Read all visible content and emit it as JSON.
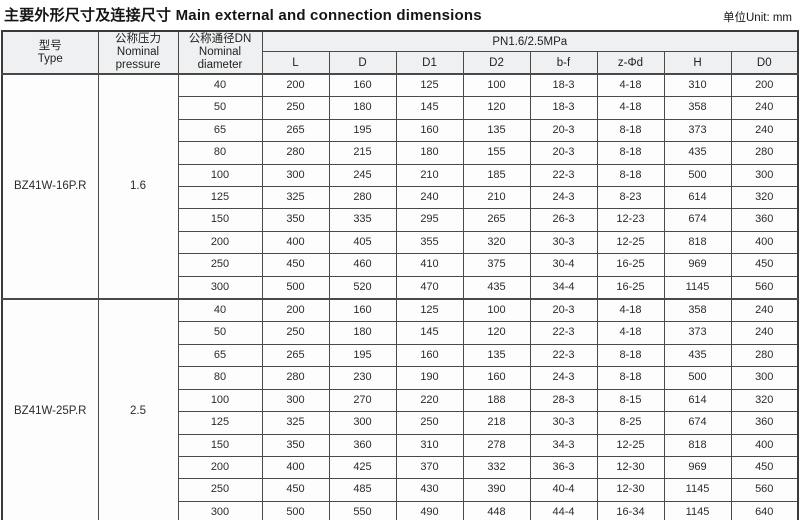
{
  "title": {
    "zh": "主要外形尺寸及连接尺寸",
    "en": "Main external and connection dimensions",
    "unit": "单位Unit: mm"
  },
  "colors": {
    "header_bg": "#eef0f1",
    "cell_bg": "#fdfdfd",
    "border": "#4a4a4a",
    "outer_border": "#3a3a3a",
    "text": "#1f1f1f"
  },
  "table": {
    "headers": {
      "type": [
        "型号",
        "Type"
      ],
      "pressure": [
        "公称压力",
        "Nominal",
        "pressure"
      ],
      "diameter": [
        "公称通径DN",
        "Nominal",
        "diameter"
      ],
      "pn": "PN1.6/2.5MPa",
      "dims": [
        "L",
        "D",
        "D1",
        "D2",
        "b-f",
        "z-Φd",
        "H",
        "D0"
      ]
    },
    "groups": [
      {
        "type": "BZ41W-16P.R",
        "pressure": "1.6",
        "rows": [
          {
            "dn": "40",
            "values": [
              "200",
              "160",
              "125",
              "100",
              "18-3",
              "4-18",
              "310",
              "200"
            ]
          },
          {
            "dn": "50",
            "values": [
              "250",
              "180",
              "145",
              "120",
              "18-3",
              "4-18",
              "358",
              "240"
            ]
          },
          {
            "dn": "65",
            "values": [
              "265",
              "195",
              "160",
              "135",
              "20-3",
              "8-18",
              "373",
              "240"
            ]
          },
          {
            "dn": "80",
            "values": [
              "280",
              "215",
              "180",
              "155",
              "20-3",
              "8-18",
              "435",
              "280"
            ]
          },
          {
            "dn": "100",
            "values": [
              "300",
              "245",
              "210",
              "185",
              "22-3",
              "8-18",
              "500",
              "300"
            ]
          },
          {
            "dn": "125",
            "values": [
              "325",
              "280",
              "240",
              "210",
              "24-3",
              "8-23",
              "614",
              "320"
            ]
          },
          {
            "dn": "150",
            "values": [
              "350",
              "335",
              "295",
              "265",
              "26-3",
              "12-23",
              "674",
              "360"
            ]
          },
          {
            "dn": "200",
            "values": [
              "400",
              "405",
              "355",
              "320",
              "30-3",
              "12-25",
              "818",
              "400"
            ]
          },
          {
            "dn": "250",
            "values": [
              "450",
              "460",
              "410",
              "375",
              "30-4",
              "16-25",
              "969",
              "450"
            ]
          },
          {
            "dn": "300",
            "values": [
              "500",
              "520",
              "470",
              "435",
              "34-4",
              "16-25",
              "1145",
              "560"
            ]
          }
        ]
      },
      {
        "type": "BZ41W-25P.R",
        "pressure": "2.5",
        "rows": [
          {
            "dn": "40",
            "values": [
              "200",
              "160",
              "125",
              "100",
              "20-3",
              "4-18",
              "358",
              "240"
            ]
          },
          {
            "dn": "50",
            "values": [
              "250",
              "180",
              "145",
              "120",
              "22-3",
              "4-18",
              "373",
              "240"
            ]
          },
          {
            "dn": "65",
            "values": [
              "265",
              "195",
              "160",
              "135",
              "22-3",
              "8-18",
              "435",
              "280"
            ]
          },
          {
            "dn": "80",
            "values": [
              "280",
              "230",
              "190",
              "160",
              "24-3",
              "8-18",
              "500",
              "300"
            ]
          },
          {
            "dn": "100",
            "values": [
              "300",
              "270",
              "220",
              "188",
              "28-3",
              "8-15",
              "614",
              "320"
            ]
          },
          {
            "dn": "125",
            "values": [
              "325",
              "300",
              "250",
              "218",
              "30-3",
              "8-25",
              "674",
              "360"
            ]
          },
          {
            "dn": "150",
            "values": [
              "350",
              "360",
              "310",
              "278",
              "34-3",
              "12-25",
              "818",
              "400"
            ]
          },
          {
            "dn": "200",
            "values": [
              "400",
              "425",
              "370",
              "332",
              "36-3",
              "12-30",
              "969",
              "450"
            ]
          },
          {
            "dn": "250",
            "values": [
              "450",
              "485",
              "430",
              "390",
              "40-4",
              "12-30",
              "1145",
              "560"
            ]
          },
          {
            "dn": "300",
            "values": [
              "500",
              "550",
              "490",
              "448",
              "44-4",
              "16-34",
              "1145",
              "640"
            ]
          }
        ]
      }
    ]
  }
}
